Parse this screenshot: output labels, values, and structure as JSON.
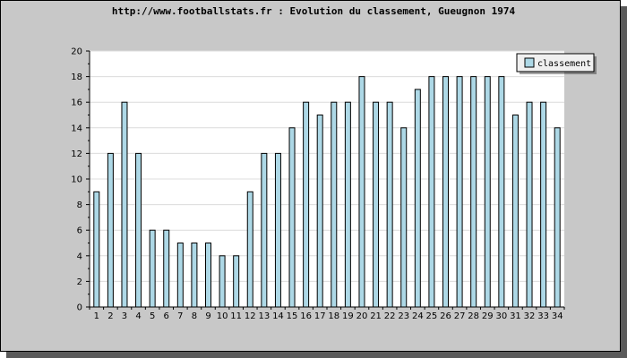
{
  "chart_data": {
    "type": "bar",
    "title": "http://www.footballstats.fr : Evolution du classement, Gueugnon 1974",
    "xlabel": "",
    "ylabel": "",
    "categories": [
      "1",
      "2",
      "3",
      "4",
      "5",
      "6",
      "7",
      "8",
      "9",
      "10",
      "11",
      "12",
      "13",
      "14",
      "15",
      "16",
      "17",
      "18",
      "19",
      "20",
      "21",
      "22",
      "23",
      "24",
      "25",
      "26",
      "27",
      "28",
      "29",
      "30",
      "31",
      "32",
      "33",
      "34"
    ],
    "series": [
      {
        "name": "classement",
        "values": [
          9,
          12,
          16,
          12,
          6,
          6,
          5,
          5,
          5,
          4,
          4,
          9,
          12,
          12,
          14,
          16,
          15,
          16,
          16,
          18,
          16,
          16,
          14,
          17,
          18,
          18,
          18,
          18,
          18,
          18,
          15,
          16,
          16,
          14
        ]
      }
    ],
    "ylim": [
      0,
      20
    ],
    "yticks": [
      "0",
      "2",
      "4",
      "6",
      "8",
      "10",
      "12",
      "14",
      "16",
      "18",
      "20"
    ],
    "grid": true,
    "legend": "top-right",
    "colors": {
      "bar_fill": "#add8e6",
      "bar_stroke": "#000000",
      "background": "#c8c8c8",
      "plot_background": "#ffffff",
      "grid": "#dcdcdc"
    }
  }
}
